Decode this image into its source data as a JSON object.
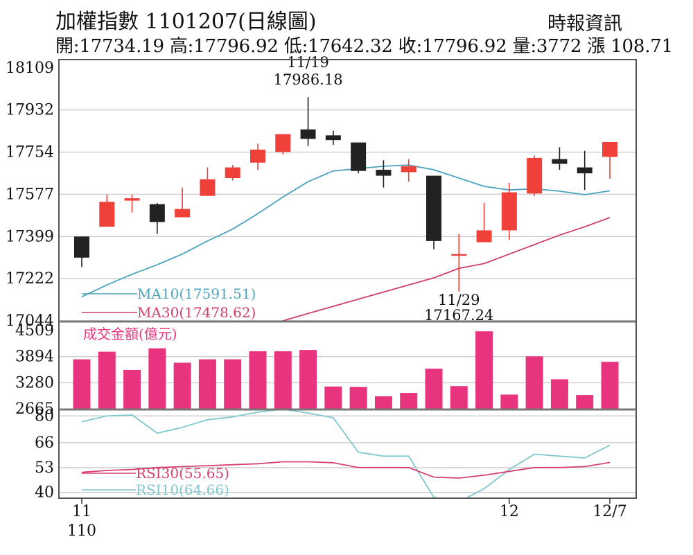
{
  "header": {
    "title": "加權指數 1101207(日線圖)",
    "source": "時報資訊",
    "ohlc_line": "開:17734.19 高:17796.92 低:17642.32 收:17796.92 量:3772 漲 108.71"
  },
  "colors": {
    "up": "#f0403a",
    "down": "#222222",
    "ma10": "#4aa3bd",
    "ma30": "#d13d6a",
    "volume": "#e8337e",
    "rsi10": "#7fc8cf",
    "rsi30": "#d7416f",
    "grid": "#d0d0d0",
    "frame": "#555555"
  },
  "chart_data": [
    {
      "type": "candlestick",
      "y_ticks": [
        "18109",
        "17932",
        "17754",
        "17577",
        "17399",
        "17222",
        "17044"
      ],
      "ylim": [
        17044,
        18109
      ],
      "x_tick_labels": [
        {
          "index": 0,
          "label": "11"
        },
        {
          "index": 0,
          "label": "110"
        },
        {
          "index": 17,
          "label": "12"
        },
        {
          "index": 21,
          "label": "12/7"
        }
      ],
      "grid": true,
      "candles": [
        {
          "o": 17399,
          "c": 17310,
          "h": 17399,
          "l": 17270
        },
        {
          "o": 17440,
          "c": 17545,
          "h": 17575,
          "l": 17440
        },
        {
          "o": 17550,
          "c": 17560,
          "h": 17575,
          "l": 17500
        },
        {
          "o": 17535,
          "c": 17460,
          "h": 17540,
          "l": 17410
        },
        {
          "o": 17480,
          "c": 17515,
          "h": 17605,
          "l": 17480
        },
        {
          "o": 17570,
          "c": 17640,
          "h": 17690,
          "l": 17570
        },
        {
          "o": 17645,
          "c": 17690,
          "h": 17700,
          "l": 17635
        },
        {
          "o": 17710,
          "c": 17765,
          "h": 17790,
          "l": 17680
        },
        {
          "o": 17755,
          "c": 17830,
          "h": 17830,
          "l": 17745
        },
        {
          "o": 17850,
          "c": 17810,
          "h": 17986.18,
          "l": 17780
        },
        {
          "o": 17825,
          "c": 17805,
          "h": 17845,
          "l": 17785
        },
        {
          "o": 17795,
          "c": 17675,
          "h": 17795,
          "l": 17665
        },
        {
          "o": 17680,
          "c": 17655,
          "h": 17720,
          "l": 17605
        },
        {
          "o": 17670,
          "c": 17695,
          "h": 17725,
          "l": 17630
        },
        {
          "o": 17655,
          "c": 17380,
          "h": 17655,
          "l": 17345
        },
        {
          "o": 17320,
          "c": 17325,
          "h": 17410,
          "l": 17167.24
        },
        {
          "o": 17375,
          "c": 17425,
          "h": 17540,
          "l": 17375
        },
        {
          "o": 17425,
          "c": 17585,
          "h": 17625,
          "l": 17385
        },
        {
          "o": 17580,
          "c": 17730,
          "h": 17740,
          "l": 17570
        },
        {
          "o": 17725,
          "c": 17705,
          "h": 17775,
          "l": 17680
        },
        {
          "o": 17690,
          "c": 17665,
          "h": 17760,
          "l": 17595
        },
        {
          "o": 17734.19,
          "c": 17796.92,
          "h": 17796.92,
          "l": 17642.32
        }
      ],
      "annotations": [
        {
          "index": 9,
          "date": "11/19",
          "value": "17986.18",
          "position": "above"
        },
        {
          "index": 15,
          "date": "11/29",
          "value": "17167.24",
          "position": "below"
        }
      ],
      "series": [
        {
          "name": "MA30(17478.62)",
          "key": "ma30",
          "values": [
            null,
            null,
            null,
            null,
            null,
            null,
            null,
            null,
            17044,
            17075,
            17105,
            17135,
            17165,
            17195,
            17225,
            17265,
            17285,
            17325,
            17365,
            17405,
            17440,
            17478.62
          ]
        },
        {
          "name": "MA10(17591.51)",
          "key": "ma10",
          "values": [
            17145,
            17195,
            17240,
            17280,
            17325,
            17380,
            17430,
            17495,
            17565,
            17630,
            17675,
            17685,
            17695,
            17700,
            17680,
            17645,
            17610,
            17595,
            17600,
            17590,
            17575,
            17591.51
          ]
        }
      ]
    },
    {
      "type": "bar",
      "title": "成交金額(億元)",
      "y_ticks": [
        "4509",
        "3894",
        "3280",
        "2665"
      ],
      "ylim": [
        2665,
        4509
      ],
      "values": [
        3830,
        4010,
        3580,
        4090,
        3750,
        3830,
        3830,
        4020,
        4020,
        4050,
        3190,
        3180,
        2960,
        3040,
        3610,
        3200,
        4490,
        3000,
        3900,
        3360,
        2990,
        3772
      ]
    },
    {
      "type": "line",
      "y_ticks": [
        "80",
        "66",
        "53",
        "40"
      ],
      "ylim": [
        37,
        83
      ],
      "series": [
        {
          "name": "RSI10(64.66)",
          "key": "rsi10",
          "values": [
            77,
            80,
            80.5,
            71,
            74,
            78,
            79.5,
            82,
            83.5,
            81.5,
            79,
            61,
            59,
            59,
            37.5,
            35,
            42,
            52,
            60,
            59,
            58,
            64.66
          ]
        },
        {
          "name": "RSI30(55.65)",
          "key": "rsi30",
          "values": [
            50.5,
            51.5,
            52,
            53,
            53.5,
            54,
            54.5,
            55,
            56,
            56,
            55.5,
            53,
            53,
            53,
            48,
            47.5,
            49,
            51,
            53,
            53,
            53.5,
            55.65
          ]
        }
      ]
    }
  ]
}
